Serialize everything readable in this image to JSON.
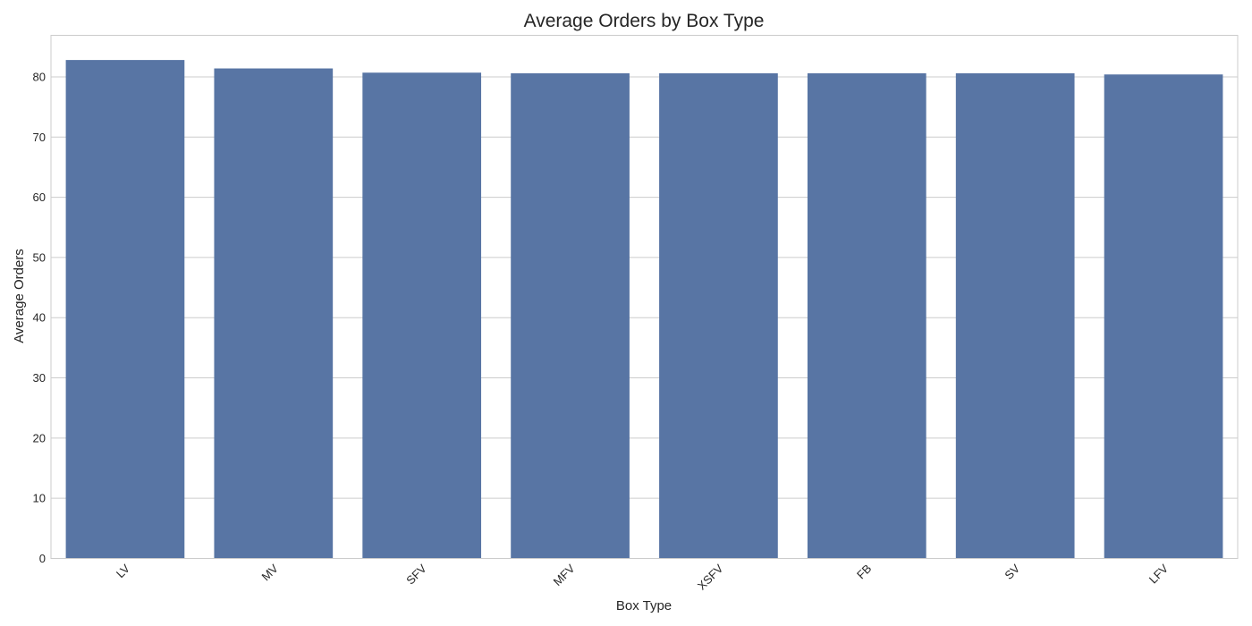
{
  "chart_data": {
    "type": "bar",
    "title": "Average Orders by Box Type",
    "xlabel": "Box Type",
    "ylabel": "Average Orders",
    "categories": [
      "LV",
      "MV",
      "SFV",
      "MFV",
      "XSFV",
      "FB",
      "SV",
      "LFV"
    ],
    "values": [
      82.8,
      81.4,
      80.7,
      80.6,
      80.6,
      80.6,
      80.6,
      80.4
    ],
    "ylim": [
      0,
      86.9
    ],
    "yticks": [
      0,
      10,
      20,
      30,
      40,
      50,
      60,
      70,
      80
    ],
    "grid": true,
    "legend": "none",
    "colors": {
      "bar": "#5875a4",
      "grid": "#cccccc",
      "frame": "#cccccc",
      "text": "#262626"
    }
  }
}
